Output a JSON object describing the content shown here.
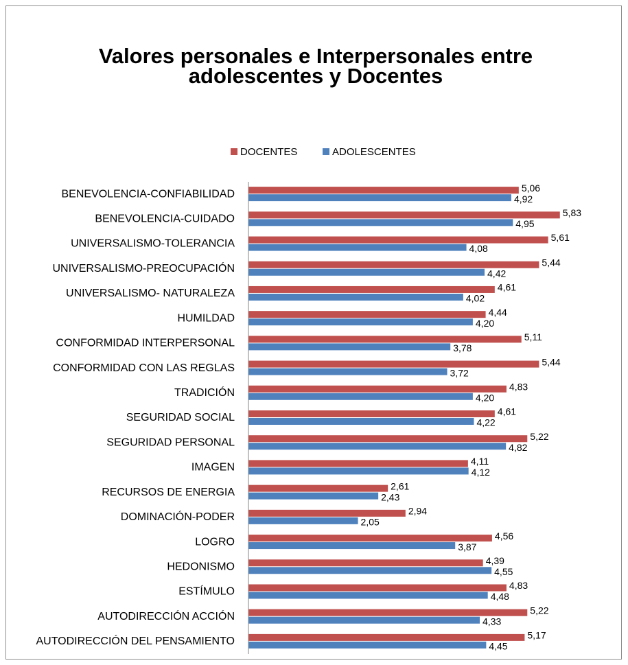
{
  "chart_data": {
    "type": "barh",
    "title": "Valores personales e Interpersonales entre adolescentes y Docentes",
    "categories": [
      "BENEVOLENCIA-CONFIABILIDAD",
      "BENEVOLENCIA-CUIDADO",
      "UNIVERSALISMO-TOLERANCIA",
      "UNIVERSALISMO-PREOCUPACIÓN",
      "UNIVERSALISMO- NATURALEZA ",
      "HUMILDAD",
      "CONFORMIDAD INTERPERSONAL",
      "CONFORMIDAD CON LAS REGLAS",
      "TRADICIÓN",
      "SEGURIDAD SOCIAL",
      "SEGURIDAD PERSONAL",
      "IMAGEN",
      "RECURSOS DE ENERGIA",
      "DOMINACIÓN-PODER",
      "LOGRO",
      "HEDONISMO",
      "ESTÍMULO",
      "AUTODIRECCIÓN ACCIÓN",
      "AUTODIRECCIÓN DEL PENSAMIENTO"
    ],
    "series": [
      {
        "name": "DOCENTES",
        "color": "#c0504d",
        "values": [
          5.06,
          5.83,
          5.61,
          5.44,
          4.61,
          4.44,
          5.11,
          5.44,
          4.83,
          4.61,
          5.22,
          4.11,
          2.61,
          2.94,
          4.56,
          4.39,
          4.83,
          5.22,
          5.17
        ],
        "value_labels": [
          "5,06",
          "5,83",
          "5,61",
          "5,44",
          "4,61",
          "4,44",
          "5,11",
          "5,44",
          "4,83",
          "4,61",
          "5,22",
          "4,11",
          "2,61",
          "2,94",
          "4,56",
          "4,39",
          "4,83",
          "5,22",
          "5,17"
        ]
      },
      {
        "name": "ADOLESCENTES",
        "color": "#4f81bd",
        "values": [
          4.92,
          4.95,
          4.08,
          4.42,
          4.02,
          4.2,
          3.78,
          3.72,
          4.2,
          4.22,
          4.82,
          4.12,
          2.43,
          2.05,
          3.87,
          4.55,
          4.48,
          4.33,
          4.45
        ],
        "value_labels": [
          "4,92",
          "4,95",
          "4,08",
          "4,42",
          "4,02",
          "4,20",
          "3,78",
          "3,72",
          "4,20",
          "4,22",
          "4,82",
          "4,12",
          "2,43",
          "2,05",
          "3,87",
          "4,55",
          "4,48",
          "4,33",
          "4,45"
        ]
      }
    ],
    "xlim": [
      0,
      6
    ],
    "legend": "top"
  }
}
